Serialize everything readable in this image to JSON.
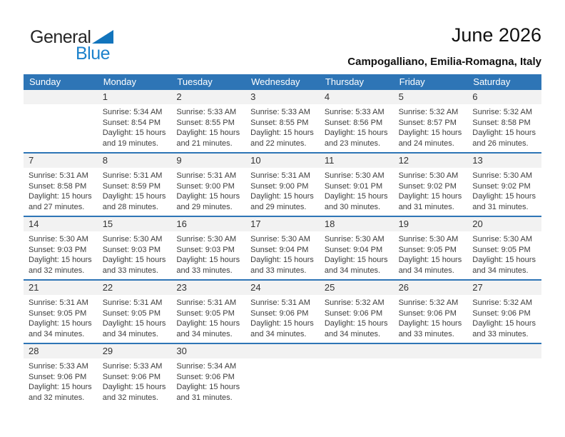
{
  "logo": {
    "general": "General",
    "blue": "Blue"
  },
  "header": {
    "month_year": "June 2026",
    "location": "Campogalliano, Emilia-Romagna, Italy"
  },
  "colors": {
    "header_blue": "#2e75b6",
    "week_divider_blue": "#2e75b6",
    "day_strip_gray": "#f2f2f2",
    "logo_blue": "#1274bc"
  },
  "calendar": {
    "day_headers": [
      "Sunday",
      "Monday",
      "Tuesday",
      "Wednesday",
      "Thursday",
      "Friday",
      "Saturday"
    ],
    "weeks": [
      [
        null,
        {
          "day": "1",
          "lines": [
            "Sunrise: 5:34 AM",
            "Sunset: 8:54 PM",
            "Daylight: 15 hours",
            "and 19 minutes."
          ]
        },
        {
          "day": "2",
          "lines": [
            "Sunrise: 5:33 AM",
            "Sunset: 8:55 PM",
            "Daylight: 15 hours",
            "and 21 minutes."
          ]
        },
        {
          "day": "3",
          "lines": [
            "Sunrise: 5:33 AM",
            "Sunset: 8:55 PM",
            "Daylight: 15 hours",
            "and 22 minutes."
          ]
        },
        {
          "day": "4",
          "lines": [
            "Sunrise: 5:33 AM",
            "Sunset: 8:56 PM",
            "Daylight: 15 hours",
            "and 23 minutes."
          ]
        },
        {
          "day": "5",
          "lines": [
            "Sunrise: 5:32 AM",
            "Sunset: 8:57 PM",
            "Daylight: 15 hours",
            "and 24 minutes."
          ]
        },
        {
          "day": "6",
          "lines": [
            "Sunrise: 5:32 AM",
            "Sunset: 8:58 PM",
            "Daylight: 15 hours",
            "and 26 minutes."
          ]
        }
      ],
      [
        {
          "day": "7",
          "lines": [
            "Sunrise: 5:31 AM",
            "Sunset: 8:58 PM",
            "Daylight: 15 hours",
            "and 27 minutes."
          ]
        },
        {
          "day": "8",
          "lines": [
            "Sunrise: 5:31 AM",
            "Sunset: 8:59 PM",
            "Daylight: 15 hours",
            "and 28 minutes."
          ]
        },
        {
          "day": "9",
          "lines": [
            "Sunrise: 5:31 AM",
            "Sunset: 9:00 PM",
            "Daylight: 15 hours",
            "and 29 minutes."
          ]
        },
        {
          "day": "10",
          "lines": [
            "Sunrise: 5:31 AM",
            "Sunset: 9:00 PM",
            "Daylight: 15 hours",
            "and 29 minutes."
          ]
        },
        {
          "day": "11",
          "lines": [
            "Sunrise: 5:30 AM",
            "Sunset: 9:01 PM",
            "Daylight: 15 hours",
            "and 30 minutes."
          ]
        },
        {
          "day": "12",
          "lines": [
            "Sunrise: 5:30 AM",
            "Sunset: 9:02 PM",
            "Daylight: 15 hours",
            "and 31 minutes."
          ]
        },
        {
          "day": "13",
          "lines": [
            "Sunrise: 5:30 AM",
            "Sunset: 9:02 PM",
            "Daylight: 15 hours",
            "and 31 minutes."
          ]
        }
      ],
      [
        {
          "day": "14",
          "lines": [
            "Sunrise: 5:30 AM",
            "Sunset: 9:03 PM",
            "Daylight: 15 hours",
            "and 32 minutes."
          ]
        },
        {
          "day": "15",
          "lines": [
            "Sunrise: 5:30 AM",
            "Sunset: 9:03 PM",
            "Daylight: 15 hours",
            "and 33 minutes."
          ]
        },
        {
          "day": "16",
          "lines": [
            "Sunrise: 5:30 AM",
            "Sunset: 9:03 PM",
            "Daylight: 15 hours",
            "and 33 minutes."
          ]
        },
        {
          "day": "17",
          "lines": [
            "Sunrise: 5:30 AM",
            "Sunset: 9:04 PM",
            "Daylight: 15 hours",
            "and 33 minutes."
          ]
        },
        {
          "day": "18",
          "lines": [
            "Sunrise: 5:30 AM",
            "Sunset: 9:04 PM",
            "Daylight: 15 hours",
            "and 34 minutes."
          ]
        },
        {
          "day": "19",
          "lines": [
            "Sunrise: 5:30 AM",
            "Sunset: 9:05 PM",
            "Daylight: 15 hours",
            "and 34 minutes."
          ]
        },
        {
          "day": "20",
          "lines": [
            "Sunrise: 5:30 AM",
            "Sunset: 9:05 PM",
            "Daylight: 15 hours",
            "and 34 minutes."
          ]
        }
      ],
      [
        {
          "day": "21",
          "lines": [
            "Sunrise: 5:31 AM",
            "Sunset: 9:05 PM",
            "Daylight: 15 hours",
            "and 34 minutes."
          ]
        },
        {
          "day": "22",
          "lines": [
            "Sunrise: 5:31 AM",
            "Sunset: 9:05 PM",
            "Daylight: 15 hours",
            "and 34 minutes."
          ]
        },
        {
          "day": "23",
          "lines": [
            "Sunrise: 5:31 AM",
            "Sunset: 9:05 PM",
            "Daylight: 15 hours",
            "and 34 minutes."
          ]
        },
        {
          "day": "24",
          "lines": [
            "Sunrise: 5:31 AM",
            "Sunset: 9:06 PM",
            "Daylight: 15 hours",
            "and 34 minutes."
          ]
        },
        {
          "day": "25",
          "lines": [
            "Sunrise: 5:32 AM",
            "Sunset: 9:06 PM",
            "Daylight: 15 hours",
            "and 34 minutes."
          ]
        },
        {
          "day": "26",
          "lines": [
            "Sunrise: 5:32 AM",
            "Sunset: 9:06 PM",
            "Daylight: 15 hours",
            "and 33 minutes."
          ]
        },
        {
          "day": "27",
          "lines": [
            "Sunrise: 5:32 AM",
            "Sunset: 9:06 PM",
            "Daylight: 15 hours",
            "and 33 minutes."
          ]
        }
      ],
      [
        {
          "day": "28",
          "lines": [
            "Sunrise: 5:33 AM",
            "Sunset: 9:06 PM",
            "Daylight: 15 hours",
            "and 32 minutes."
          ]
        },
        {
          "day": "29",
          "lines": [
            "Sunrise: 5:33 AM",
            "Sunset: 9:06 PM",
            "Daylight: 15 hours",
            "and 32 minutes."
          ]
        },
        {
          "day": "30",
          "lines": [
            "Sunrise: 5:34 AM",
            "Sunset: 9:06 PM",
            "Daylight: 15 hours",
            "and 31 minutes."
          ]
        },
        null,
        null,
        null,
        null
      ]
    ]
  }
}
